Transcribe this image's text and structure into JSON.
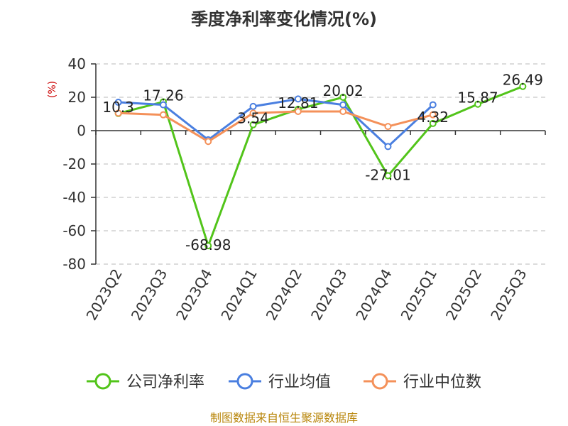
{
  "chart_data": {
    "type": "line",
    "title": "季度净利率变化情况(%)",
    "ylabel": "(%)",
    "xlabel": "",
    "ylim": [
      -80,
      40
    ],
    "yticks": [
      "40",
      "20",
      "0",
      "-20",
      "-40",
      "-60",
      "-80"
    ],
    "ytick_values": [
      40,
      20,
      0,
      -20,
      -40,
      -60,
      -80
    ],
    "categories": [
      "2023Q2",
      "2023Q3",
      "2023Q4",
      "2024Q1",
      "2024Q2",
      "2024Q3",
      "2024Q4",
      "2025Q1",
      "2025Q2",
      "2025Q3"
    ],
    "grid": "horizontal-dashed",
    "legend_position": "bottom",
    "series": [
      {
        "name": "公司净利率",
        "color": "#52c41a",
        "values": [
          10.3,
          17.26,
          -68.98,
          3.54,
          12.81,
          20.02,
          -27.01,
          4.32,
          15.87,
          26.49
        ],
        "labels": [
          "10.3",
          "17.26",
          "-68.98",
          "3.54",
          "12.81",
          "20.02",
          "-27.01",
          "4.32",
          "15.87",
          "26.49"
        ]
      },
      {
        "name": "行业均值",
        "color": "#4a7fe0",
        "values": [
          17.0,
          15.5,
          -5.5,
          14.5,
          19.0,
          15.5,
          -9.5,
          15.5,
          null,
          null
        ]
      },
      {
        "name": "行业中位数",
        "color": "#f4915a",
        "values": [
          10.5,
          9.5,
          -6.5,
          10.5,
          11.5,
          11.5,
          2.5,
          9.5,
          null,
          null
        ]
      }
    ]
  },
  "footer": {
    "source": "制图数据来自恒生聚源数据库"
  }
}
